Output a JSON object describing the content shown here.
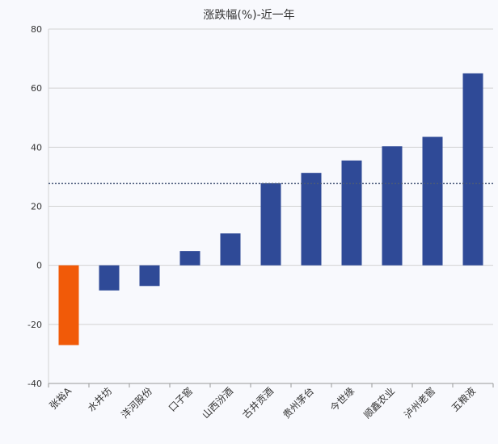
{
  "chart_data": {
    "type": "bar",
    "title": "涨跌幅(%)-近一年",
    "xlabel": "",
    "ylabel": "",
    "categories": [
      "张裕A",
      "水井坊",
      "洋河股份",
      "口子窖",
      "山西汾酒",
      "古井贡酒",
      "贵州茅台",
      "今世缘",
      "顺鑫农业",
      "泸州老窖",
      "五粮液"
    ],
    "values": [
      -27.0,
      -8.5,
      -7.0,
      4.8,
      10.8,
      27.8,
      31.3,
      35.5,
      40.3,
      43.5,
      65.0
    ],
    "ylim": [
      -40,
      80
    ],
    "yticks": [
      "80",
      "60",
      "40",
      "20",
      "0",
      "-20",
      "-40"
    ],
    "reference_line": 27.7,
    "grid": "horizontal",
    "legend": "none",
    "colors": {
      "highlight": "#f15a08",
      "bar": "#2f4a97",
      "reference": "#4a5a7a",
      "grid": "#d2d2d2",
      "axis": "#999999"
    },
    "highlight_index": 0
  }
}
